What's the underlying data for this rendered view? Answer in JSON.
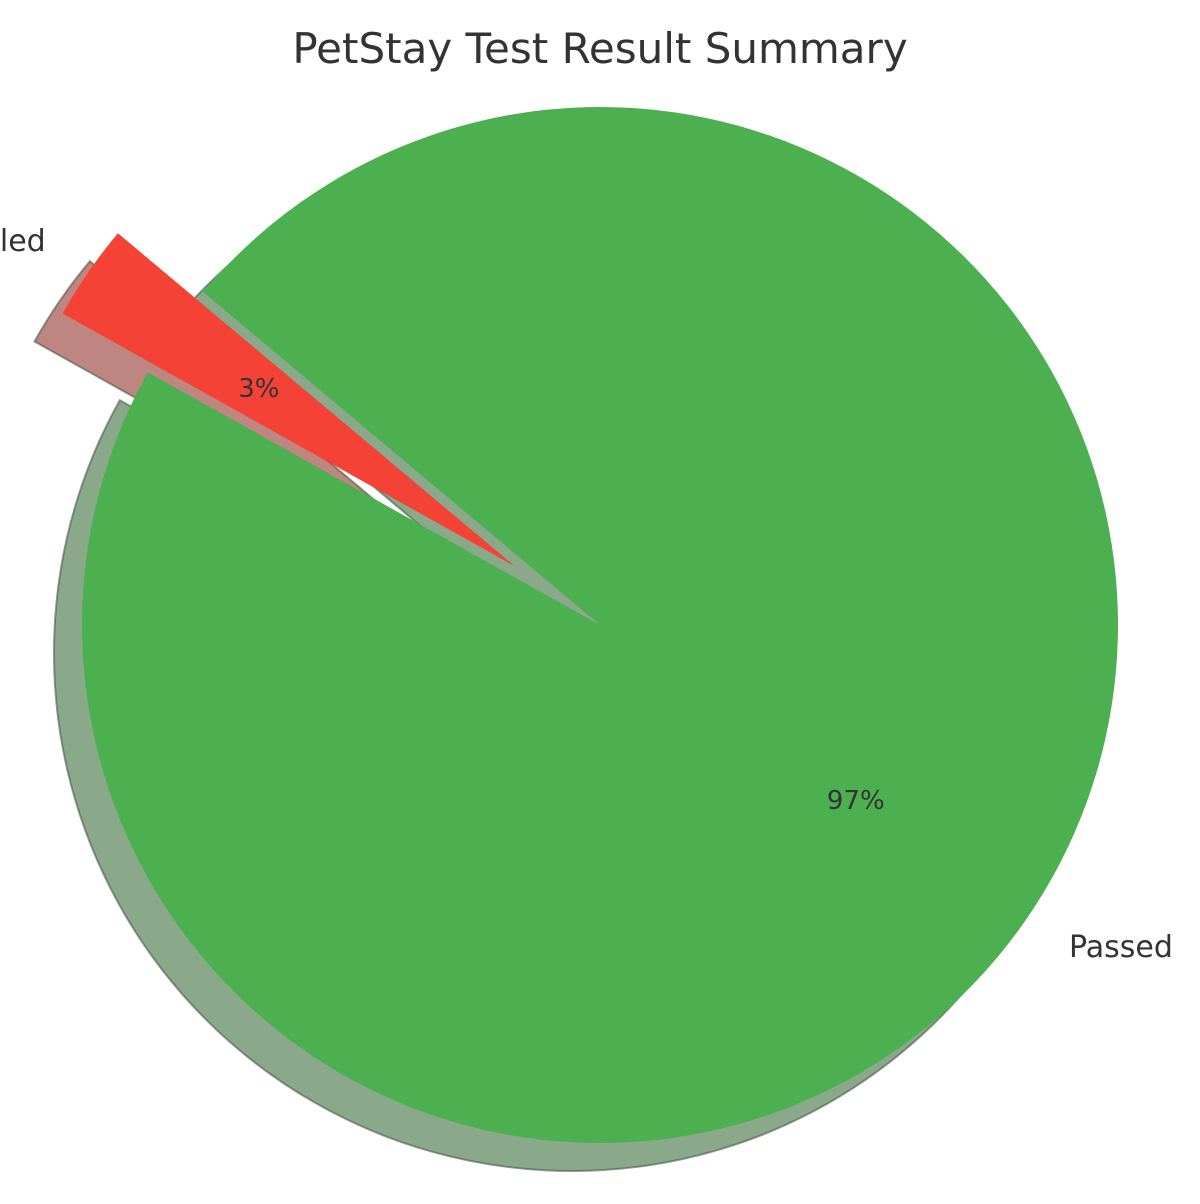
{
  "chart_data": {
    "type": "pie",
    "title": "PetStay Test Result Summary",
    "slices": [
      {
        "label": "Failed",
        "value": 3,
        "pct_label": "3%",
        "color": "#F44336",
        "exploded": true
      },
      {
        "label": "Passed",
        "value": 97,
        "pct_label": "97%",
        "color": "#4CAF50",
        "exploded": false
      }
    ],
    "shadow": true,
    "legend": "none"
  }
}
